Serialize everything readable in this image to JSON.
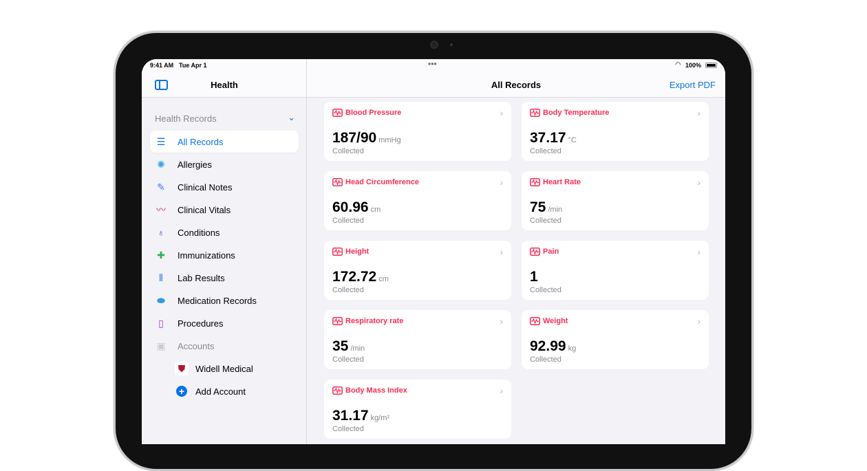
{
  "status": {
    "time": "9:41 AM",
    "date": "Tue Apr 1",
    "battery": "100%"
  },
  "sidebar": {
    "title": "Health",
    "section": "Health Records",
    "items": [
      {
        "label": "All Records",
        "icon": "records-icon"
      },
      {
        "label": "Allergies",
        "icon": "allergies-icon"
      },
      {
        "label": "Clinical Notes",
        "icon": "notes-icon"
      },
      {
        "label": "Clinical Vitals",
        "icon": "vitals-icon"
      },
      {
        "label": "Conditions",
        "icon": "stethoscope-icon"
      },
      {
        "label": "Immunizations",
        "icon": "vaccine-icon"
      },
      {
        "label": "Lab Results",
        "icon": "test-tube-icon"
      },
      {
        "label": "Medication Records",
        "icon": "pill-icon"
      },
      {
        "label": "Procedures",
        "icon": "procedure-icon"
      }
    ],
    "accounts_label": "Accounts",
    "account": "Widell Medical",
    "add_account": "Add Account"
  },
  "main": {
    "title": "All Records",
    "export": "Export PDF",
    "cards": [
      {
        "title": "Blood Pressure",
        "value": "187/90",
        "unit": "mmHg",
        "status": "Collected"
      },
      {
        "title": "Body Temperature",
        "value": "37.17",
        "unit": "°C",
        "status": "Collected"
      },
      {
        "title": "Head Circumference",
        "value": "60.96",
        "unit": "cm",
        "status": "Collected"
      },
      {
        "title": "Heart Rate",
        "value": "75",
        "unit": "/min",
        "status": "Collected"
      },
      {
        "title": "Height",
        "value": "172.72",
        "unit": "cm",
        "status": "Collected"
      },
      {
        "title": "Pain",
        "value": "1",
        "unit": "",
        "status": "Collected"
      },
      {
        "title": "Respiratory rate",
        "value": "35",
        "unit": "/min",
        "status": "Collected"
      },
      {
        "title": "Weight",
        "value": "92.99",
        "unit": "kg",
        "status": "Collected"
      },
      {
        "title": "Body Mass Index",
        "value": "31.17",
        "unit": "kg/m²",
        "status": "Collected"
      }
    ]
  },
  "colors": {
    "accent": "#0a72e8",
    "vitals": "#fa2d55"
  }
}
